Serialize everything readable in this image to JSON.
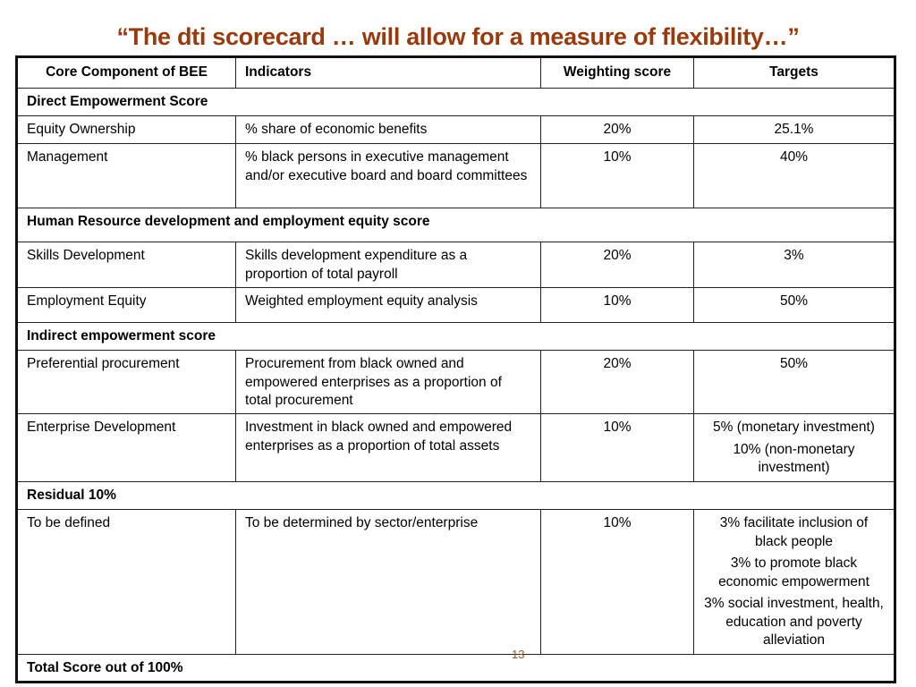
{
  "title": "“The dti scorecard … will allow for a measure of flexibility…”",
  "table": {
    "headers": [
      "Core Component of BEE",
      "Indicators",
      "Weighting score",
      "Targets"
    ],
    "sections": {
      "direct": "Direct Empowerment Score",
      "hr": "Human Resource development and employment equity score",
      "indirect": "Indirect empowerment score",
      "residual": "Residual 10%",
      "total": "Total Score out of 100%"
    },
    "rows": [
      {
        "component": "Equity Ownership",
        "indicator": "% share of economic benefits",
        "weight": "20%",
        "targets": [
          "25.1%"
        ]
      },
      {
        "component": "Management",
        "indicator": "% black persons in executive management and/or executive board and board committees",
        "weight": "10%",
        "targets": [
          "40%"
        ]
      },
      {
        "component": "Skills Development",
        "indicator": "Skills development expenditure as a proportion of total payroll",
        "weight": "20%",
        "targets": [
          "3%"
        ]
      },
      {
        "component": "Employment Equity",
        "indicator": "Weighted employment equity analysis",
        "weight": "10%",
        "targets": [
          "50%"
        ]
      },
      {
        "component": "Preferential procurement",
        "indicator": "Procurement from black owned and empowered enterprises as a proportion of total procurement",
        "weight": "20%",
        "targets": [
          "50%"
        ]
      },
      {
        "component": "Enterprise Development",
        "indicator": "Investment in black owned and empowered enterprises as a proportion of total assets",
        "weight": "10%",
        "targets": [
          "5% (monetary investment)",
          "10% (non-monetary investment)"
        ]
      },
      {
        "component": "To be defined",
        "indicator": "To be determined by sector/enterprise",
        "weight": "10%",
        "targets": [
          "3% facilitate inclusion of black people",
          "3% to promote black economic empowerment",
          "3% social investment, health, education and poverty alleviation"
        ]
      }
    ]
  },
  "page_number": "13"
}
